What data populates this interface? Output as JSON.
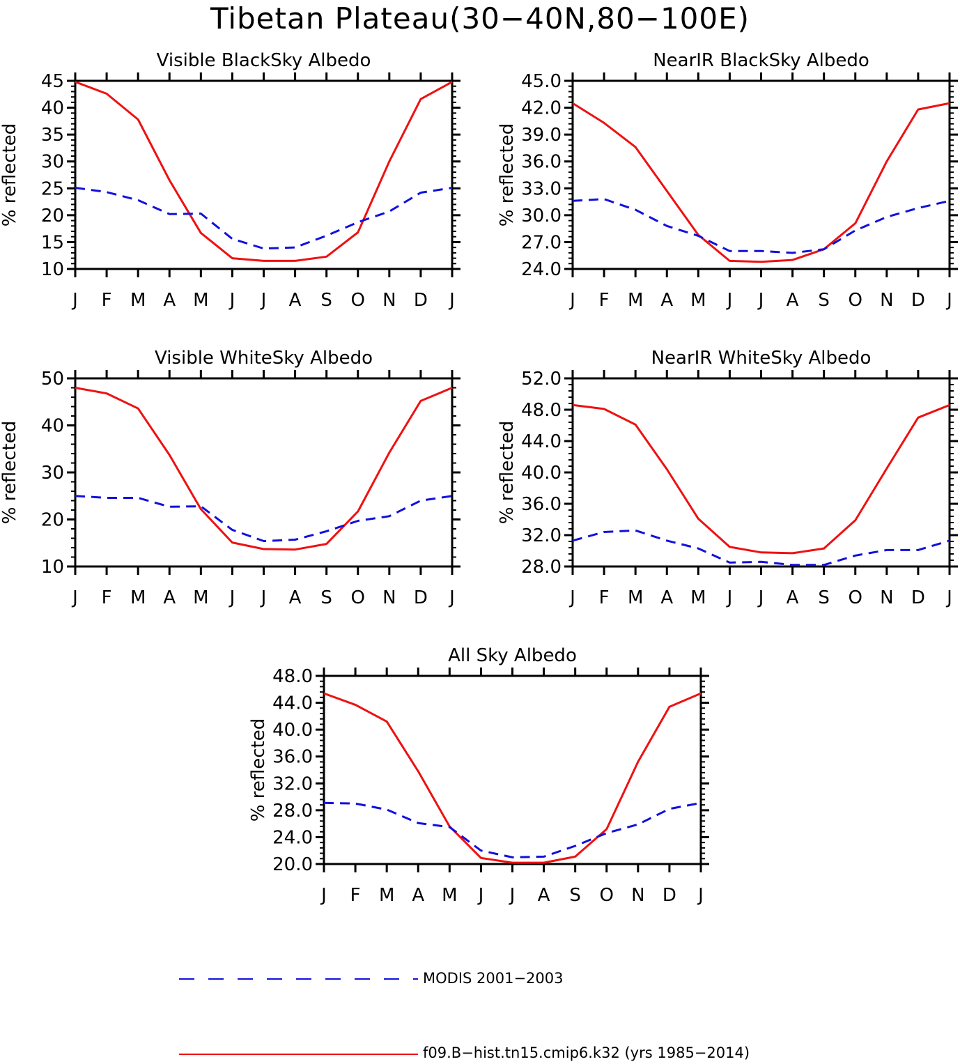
{
  "title": "Tibetan Plateau(30−40N,80−100E)",
  "months": [
    "J",
    "F",
    "M",
    "A",
    "M",
    "J",
    "J",
    "A",
    "S",
    "O",
    "N",
    "D",
    "J"
  ],
  "colors": {
    "model": "#ee1111",
    "obs": "#1111dd"
  },
  "legend": {
    "obs_label": "MODIS 2001−2003",
    "model_label": "f09.B−hist.tn15.cmip6.k32 (yrs 1985−2014)"
  },
  "chart_data": [
    {
      "type": "line",
      "title": "Visible BlackSky Albedo",
      "ylabel": "% reflected",
      "ylim": [
        10,
        45
      ],
      "yticks": [
        "10",
        "15",
        "20",
        "25",
        "30",
        "35",
        "40",
        "45"
      ],
      "categories": [
        "J",
        "F",
        "M",
        "A",
        "M",
        "J",
        "J",
        "A",
        "S",
        "O",
        "N",
        "D",
        "J"
      ],
      "series": [
        {
          "name": "f09.B−hist.tn15.cmip6.k32 (yrs 1985−2014)",
          "style": "solid",
          "values": [
            44.8,
            42.6,
            37.8,
            26.5,
            16.7,
            12.0,
            11.5,
            11.5,
            12.3,
            16.8,
            30.0,
            41.6,
            44.8
          ]
        },
        {
          "name": "MODIS 2001−2003",
          "style": "dashed",
          "values": [
            25.1,
            24.3,
            22.8,
            20.2,
            20.3,
            15.6,
            13.8,
            14.0,
            16.2,
            18.7,
            20.7,
            24.2,
            25.1
          ]
        }
      ]
    },
    {
      "type": "line",
      "title": "NearIR BlackSky Albedo",
      "ylabel": "% reflected",
      "ylim": [
        24,
        45
      ],
      "yticks": [
        "24.0",
        "27.0",
        "30.0",
        "33.0",
        "36.0",
        "39.0",
        "42.0",
        "45.0"
      ],
      "categories": [
        "J",
        "F",
        "M",
        "A",
        "M",
        "J",
        "J",
        "A",
        "S",
        "O",
        "N",
        "D",
        "J"
      ],
      "series": [
        {
          "name": "f09.B−hist.tn15.cmip6.k32 (yrs 1985−2014)",
          "style": "solid",
          "values": [
            42.5,
            40.3,
            37.6,
            32.7,
            27.8,
            24.9,
            24.8,
            25.0,
            26.2,
            29.1,
            36.0,
            41.8,
            42.5
          ]
        },
        {
          "name": "MODIS 2001−2003",
          "style": "dashed",
          "values": [
            31.6,
            31.8,
            30.6,
            28.8,
            27.7,
            26.0,
            26.0,
            25.8,
            26.2,
            28.3,
            29.8,
            30.8,
            31.6
          ]
        }
      ]
    },
    {
      "type": "line",
      "title": "Visible WhiteSky Albedo",
      "ylabel": "% reflected",
      "ylim": [
        10,
        50
      ],
      "yticks": [
        "10",
        "20",
        "30",
        "40",
        "50"
      ],
      "categories": [
        "J",
        "F",
        "M",
        "A",
        "M",
        "J",
        "J",
        "A",
        "S",
        "O",
        "N",
        "D",
        "J"
      ],
      "series": [
        {
          "name": "f09.B−hist.tn15.cmip6.k32 (yrs 1985−2014)",
          "style": "solid",
          "values": [
            48.0,
            46.8,
            43.6,
            33.7,
            22.2,
            15.1,
            13.7,
            13.6,
            14.8,
            21.7,
            34.2,
            45.2,
            48.0
          ]
        },
        {
          "name": "MODIS 2001−2003",
          "style": "dashed",
          "values": [
            25.0,
            24.6,
            24.6,
            22.7,
            22.8,
            17.8,
            15.4,
            15.7,
            17.5,
            19.7,
            20.7,
            24.0,
            25.0
          ]
        }
      ]
    },
    {
      "type": "line",
      "title": "NearIR WhiteSky Albedo",
      "ylabel": "% reflected",
      "ylim": [
        28,
        52
      ],
      "yticks": [
        "28.0",
        "32.0",
        "36.0",
        "40.0",
        "44.0",
        "48.0",
        "52.0"
      ],
      "categories": [
        "J",
        "F",
        "M",
        "A",
        "M",
        "J",
        "J",
        "A",
        "S",
        "O",
        "N",
        "D",
        "J"
      ],
      "series": [
        {
          "name": "f09.B−hist.tn15.cmip6.k32 (yrs 1985−2014)",
          "style": "solid",
          "values": [
            48.6,
            48.1,
            46.1,
            40.4,
            34.1,
            30.5,
            29.8,
            29.7,
            30.3,
            33.9,
            40.5,
            47.0,
            48.6
          ]
        },
        {
          "name": "MODIS 2001−2003",
          "style": "dashed",
          "values": [
            31.3,
            32.4,
            32.6,
            31.3,
            30.3,
            28.5,
            28.6,
            28.2,
            28.2,
            29.4,
            30.1,
            30.1,
            31.3
          ]
        }
      ]
    },
    {
      "type": "line",
      "title": "All Sky Albedo",
      "ylabel": "% reflected",
      "ylim": [
        20,
        48
      ],
      "yticks": [
        "20.0",
        "24.0",
        "28.0",
        "32.0",
        "36.0",
        "40.0",
        "44.0",
        "48.0"
      ],
      "categories": [
        "J",
        "F",
        "M",
        "A",
        "M",
        "J",
        "J",
        "A",
        "S",
        "O",
        "N",
        "D",
        "J"
      ],
      "series": [
        {
          "name": "f09.B−hist.tn15.cmip6.k32 (yrs 1985−2014)",
          "style": "solid",
          "values": [
            45.4,
            43.7,
            41.2,
            33.8,
            25.6,
            20.9,
            20.2,
            20.2,
            21.1,
            25.2,
            35.2,
            43.4,
            45.4
          ]
        },
        {
          "name": "MODIS 2001−2003",
          "style": "dashed",
          "values": [
            29.1,
            29.0,
            28.1,
            26.1,
            25.5,
            22.0,
            21.0,
            21.1,
            22.7,
            24.6,
            25.9,
            28.2,
            29.1
          ]
        }
      ]
    }
  ]
}
